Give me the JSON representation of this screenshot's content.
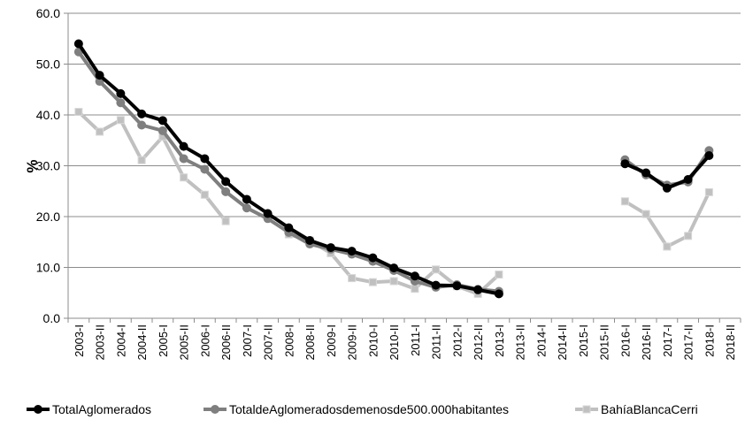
{
  "chart_data": {
    "type": "line",
    "ylabel": "%\u001f",
    "ylim": [
      0,
      60
    ],
    "yticks": [
      0,
      10,
      20,
      30,
      40,
      50,
      60
    ],
    "ytick_labels": [
      "0.0\u001f",
      "10.0\u001f",
      "20.0\u001f",
      "30.0\u001f",
      "40.0\u001f",
      "50.0\u001f",
      "60.0\u001f"
    ],
    "grid": true,
    "legend_position": "bottom",
    "categories": [
      "2003-I\u001f",
      "2003-II\u001f",
      "2004-I\u001f",
      "2004-II\u001f",
      "2005-I\u001f",
      "2005-II\u001f",
      "2006-I\u001f",
      "2006-II\u001f",
      "2007-I\u001f",
      "2007-II\u001f",
      "2008-I\u001f",
      "2008-II\u001f",
      "2009-I\u001f",
      "2009-II\u001f",
      "2010-I\u001f",
      "2010-II\u001f",
      "2011-I\u001f",
      "2011-II\u001f",
      "2012-I\u001f",
      "2012-II\u001f",
      "2013-I\u001f",
      "2013-II\u001f",
      "2014-I\u001f",
      "2014-II\u001f",
      "2015-I\u001f",
      "2015-II\u001f",
      "2016-I\u001f",
      "2016-II\u001f",
      "2017-I\u001f",
      "2017-II\u001f",
      "2018-I\u001f",
      "2018-II\u001f"
    ],
    "category_labels": [
      "2003-I\u001f",
      "2003-II\u001f",
      "2004-I\u001f",
      "2004-II\u001f",
      "2005-I\u001f",
      "2005-II\u001f",
      "2006-I\u001f",
      "2006-II\u001f",
      "2007-I\u001f",
      "2007-II\u001f",
      "2008-I\u001f",
      "2008-II\u001f",
      "2009-I\u001f",
      "2009-II\u001f",
      "2010-I\u001f",
      "2010-II\u001f",
      "2011-I\u001f",
      "2011-II\u001f",
      "2012-I\u001f",
      "2012-II\u001f",
      "2013-I\u001f",
      "2013-II\u001f",
      "2014-I\u001f",
      "2014-II\u001f",
      "2015-I\u001f",
      "2015-II\u001f",
      "2016-I\u001f",
      "2016-II\u001f",
      "2017-I\u001f",
      "2017-II\u001f",
      "2018-I\u001f",
      "2018-II\u001f"
    ],
    "series": [
      {
        "name": "Total\u001fAglomerados\u001f",
        "color": "#000000",
        "marker": "circle",
        "values": [
          54.0,
          47.8,
          44.2,
          40.2,
          38.9,
          33.8,
          31.4,
          26.9,
          23.4,
          20.6,
          17.8,
          15.3,
          13.9,
          13.2,
          11.9,
          9.9,
          8.3,
          6.5,
          6.4,
          5.6,
          4.8,
          null,
          null,
          null,
          null,
          null,
          30.4,
          28.6,
          25.6,
          27.3,
          32.0,
          null
        ]
      },
      {
        "name": "Total\u001fde\u001fAglomerados\u001fde\u001fmenos\u001fde\u001f500.000\u001fhabitantes\u001f",
        "color": "#7f7f7f",
        "marker": "circle",
        "values": [
          52.4,
          46.6,
          42.4,
          38.0,
          36.9,
          31.4,
          29.3,
          24.9,
          21.7,
          19.6,
          16.9,
          14.6,
          13.6,
          12.6,
          11.2,
          9.4,
          7.3,
          6.1,
          6.6,
          5.7,
          5.3,
          null,
          null,
          null,
          null,
          null,
          31.2,
          28.2,
          26.2,
          26.8,
          33.0,
          null
        ]
      },
      {
        "name": "Bahía\u001fBlanca\u001f\u001fCerri\u001f",
        "color": "#c0c0c0",
        "marker": "square",
        "values": [
          40.6,
          36.7,
          39.0,
          31.1,
          35.7,
          27.7,
          24.3,
          19.1,
          null,
          null,
          16.5,
          15.3,
          12.8,
          7.9,
          7.1,
          7.3,
          5.8,
          9.6,
          6.3,
          4.8,
          8.6,
          null,
          null,
          null,
          null,
          null,
          23.0,
          20.5,
          14.1,
          16.2,
          24.8,
          null
        ]
      }
    ]
  }
}
